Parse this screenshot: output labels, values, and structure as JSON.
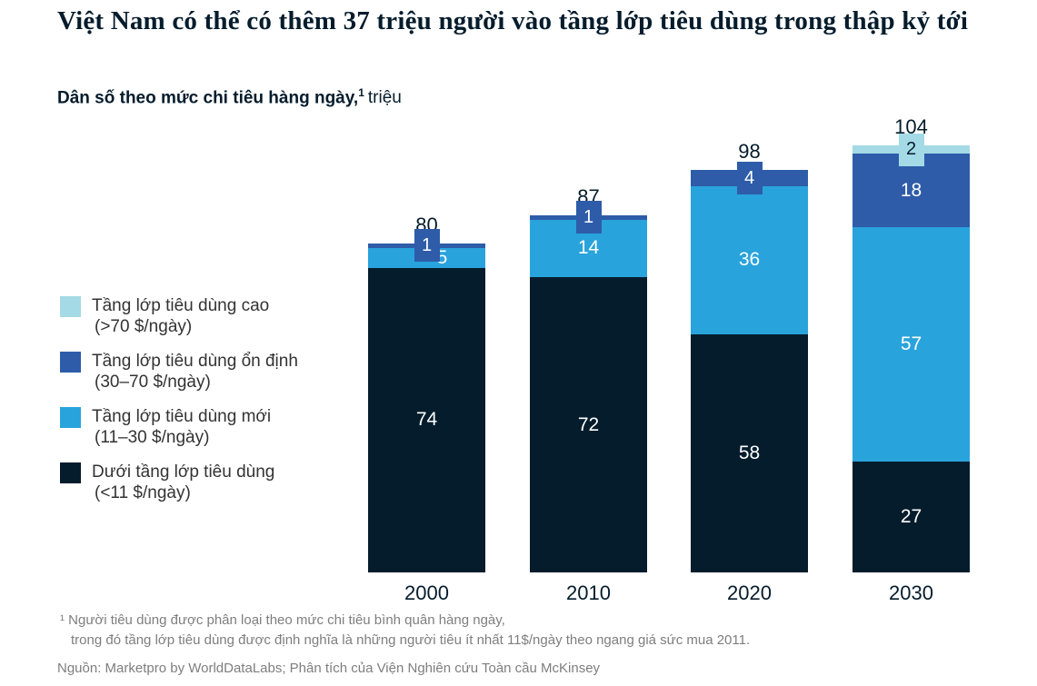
{
  "title": "Việt Nam có thể có thêm 37 triệu người vào tầng lớp tiêu dùng trong thập kỷ tới",
  "subtitle": {
    "bold": "Dân số theo mức chi tiêu hàng ngày,",
    "sup": "1",
    "unit": "triệu"
  },
  "colors": {
    "consuming_high": "#a4dae6",
    "consuming_stable": "#2e5ca9",
    "consuming_new": "#29a3dc",
    "below_consuming": "#051c2c",
    "text_dark": "#051c2c",
    "text_gray": "#7e7e7e"
  },
  "legend": [
    {
      "name": "Tầng lớp tiêu dùng cao",
      "range": "(>70 $/ngày)",
      "color": "#a4dae6"
    },
    {
      "name": "Tầng lớp tiêu dùng ổn định",
      "range": "(30–70 $/ngày)",
      "color": "#2e5ca9"
    },
    {
      "name": "Tầng lớp tiêu dùng mới",
      "range": "(11–30 $/ngày)",
      "color": "#29a3dc"
    },
    {
      "name": "Dưới tầng lớp tiêu dùng",
      "range": "(<11 $/ngày)",
      "color": "#051c2c"
    }
  ],
  "chart_data": {
    "type": "bar",
    "stacked": true,
    "title": "Dân số theo mức chi tiêu hàng ngày, triệu",
    "categories": [
      "2000",
      "2010",
      "2020",
      "2030"
    ],
    "series": [
      {
        "name": "Tầng lớp tiêu dùng cao (>70 $/ngày)",
        "color": "#a4dae6",
        "label_color": "#051c2c",
        "values": [
          0,
          0,
          0,
          2
        ]
      },
      {
        "name": "Tầng lớp tiêu dùng ổn định (30–70 $/ngày)",
        "color": "#2e5ca9",
        "label_color": "#ffffff",
        "values": [
          1,
          1,
          4,
          18
        ]
      },
      {
        "name": "Tầng lớp tiêu dùng mới (11–30 $/ngày)",
        "color": "#29a3dc",
        "label_color": "#ffffff",
        "values": [
          5,
          14,
          36,
          57
        ]
      },
      {
        "name": "Dưới tầng lớp tiêu dùng (<11 $/ngày)",
        "color": "#051c2c",
        "label_color": "#ffffff",
        "values": [
          74,
          72,
          58,
          27
        ]
      }
    ],
    "totals": [
      80,
      87,
      98,
      104
    ],
    "ylim": [
      0,
      110
    ],
    "grid": false,
    "legend_position": "left"
  },
  "footnotes": [
    "¹ Người tiêu dùng được phân loại theo mức chi tiêu bình quân hàng ngày,",
    "trong đó tầng lớp tiêu dùng được định nghĩa là những người tiêu ít nhất 11$/ngày theo ngang giá sức mua 2011."
  ],
  "source": "Nguồn: Marketpro by WorldDataLabs; Phân tích của Viện Nghiên cứu Toàn cầu McKinsey"
}
